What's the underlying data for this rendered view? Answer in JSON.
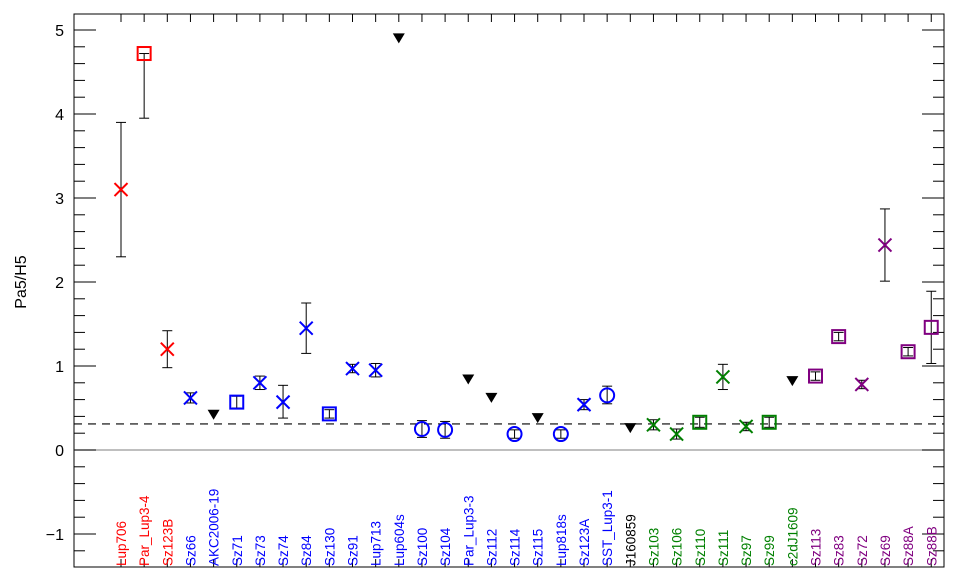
{
  "chart_data": {
    "type": "scatter",
    "title": "",
    "xlabel": "",
    "ylabel": "Pa5/H5",
    "ylim": [
      -1.4,
      5.2
    ],
    "yticks": [
      -1,
      0,
      1,
      2,
      3,
      4,
      5
    ],
    "reference_lines": [
      {
        "y": 0.31,
        "style": "dashed",
        "color": "#000000"
      },
      {
        "y": 0.0,
        "style": "solid",
        "color": "#999999"
      }
    ],
    "colors": {
      "red": "#ff0000",
      "blue": "#0000ff",
      "green": "#008000",
      "purple": "#800080",
      "black": "#000000"
    },
    "categories": [
      {
        "label": "Lup706",
        "color": "red",
        "marker": "x",
        "y": 3.1,
        "err": [
          2.3,
          3.9
        ]
      },
      {
        "label": "Par_Lup3-4",
        "color": "red",
        "marker": "square",
        "y": 4.72,
        "err": [
          3.95,
          4.72
        ]
      },
      {
        "label": "Sz123B",
        "color": "red",
        "marker": "x",
        "y": 1.2,
        "err": [
          0.98,
          1.42
        ]
      },
      {
        "label": "Sz66",
        "color": "blue",
        "marker": "x",
        "y": 0.62,
        "err": [
          0.56,
          0.68
        ]
      },
      {
        "label": "AKC2006-19",
        "color": "blue",
        "marker": "triangle-down",
        "y": 0.42
      },
      {
        "label": "Sz71",
        "color": "blue",
        "marker": "square",
        "y": 0.57,
        "err": [
          0.5,
          0.64
        ]
      },
      {
        "label": "Sz73",
        "color": "blue",
        "marker": "x",
        "y": 0.8,
        "err": [
          0.72,
          0.88
        ]
      },
      {
        "label": "Sz74",
        "color": "blue",
        "marker": "x",
        "y": 0.57,
        "err": [
          0.38,
          0.77
        ]
      },
      {
        "label": "Sz84",
        "color": "blue",
        "marker": "x",
        "y": 1.45,
        "err": [
          1.15,
          1.75
        ]
      },
      {
        "label": "Sz130",
        "color": "blue",
        "marker": "square",
        "y": 0.43,
        "err": [
          0.38,
          0.48
        ]
      },
      {
        "label": "Sz91",
        "color": "blue",
        "marker": "x",
        "y": 0.97,
        "err": [
          0.92,
          1.02
        ]
      },
      {
        "label": "Lup713",
        "color": "blue",
        "marker": "x",
        "y": 0.95,
        "err": [
          0.87,
          1.03
        ]
      },
      {
        "label": "Lup604s",
        "color": "blue",
        "marker": "triangle-down",
        "y": 4.9
      },
      {
        "label": "Sz100",
        "color": "blue",
        "marker": "circle",
        "y": 0.25,
        "err": [
          0.15,
          0.35
        ]
      },
      {
        "label": "Sz104",
        "color": "blue",
        "marker": "circle",
        "y": 0.24,
        "err": [
          0.14,
          0.34
        ]
      },
      {
        "label": "Par_Lup3-3",
        "color": "blue",
        "marker": "triangle-down",
        "y": 0.84
      },
      {
        "label": "Sz112",
        "color": "blue",
        "marker": "triangle-down",
        "y": 0.62
      },
      {
        "label": "Sz114",
        "color": "blue",
        "marker": "circle",
        "y": 0.19,
        "err": [
          0.14,
          0.24
        ]
      },
      {
        "label": "Sz115",
        "color": "blue",
        "marker": "triangle-down",
        "y": 0.38
      },
      {
        "label": "Lup818s",
        "color": "blue",
        "marker": "circle",
        "y": 0.19,
        "err": [
          0.14,
          0.24
        ]
      },
      {
        "label": "Sz123A",
        "color": "blue",
        "marker": "x",
        "y": 0.54,
        "err": [
          0.48,
          0.6
        ]
      },
      {
        "label": "SST_Lup3-1",
        "color": "blue",
        "marker": "circle",
        "y": 0.65,
        "err": [
          0.55,
          0.76
        ]
      },
      {
        "label": "J160859",
        "color": "black",
        "marker": "triangle-down",
        "y": 0.26
      },
      {
        "label": "Sz103",
        "color": "green",
        "marker": "x",
        "y": 0.3,
        "err": [
          0.24,
          0.36
        ]
      },
      {
        "label": "Sz106",
        "color": "green",
        "marker": "x",
        "y": 0.19,
        "err": [
          0.13,
          0.25
        ]
      },
      {
        "label": "Sz110",
        "color": "green",
        "marker": "square",
        "y": 0.33,
        "err": [
          0.27,
          0.39
        ]
      },
      {
        "label": "Sz111",
        "color": "green",
        "marker": "x",
        "y": 0.87,
        "err": [
          0.72,
          1.02
        ]
      },
      {
        "label": "Sz97",
        "color": "green",
        "marker": "x",
        "y": 0.28,
        "err": [
          0.23,
          0.33
        ]
      },
      {
        "label": "Sz99",
        "color": "green",
        "marker": "square",
        "y": 0.33,
        "err": [
          0.27,
          0.39
        ]
      },
      {
        "label": "c2dJ1609",
        "color": "green",
        "marker": "triangle-down",
        "y": 0.82
      },
      {
        "label": "Sz113",
        "color": "purple",
        "marker": "square",
        "y": 0.88,
        "err": [
          0.83,
          0.93
        ]
      },
      {
        "label": "Sz83",
        "color": "purple",
        "marker": "square",
        "y": 1.35,
        "err": [
          1.3,
          1.4
        ]
      },
      {
        "label": "Sz72",
        "color": "purple",
        "marker": "x",
        "y": 0.78,
        "err": [
          0.73,
          0.83
        ]
      },
      {
        "label": "Sz69",
        "color": "purple",
        "marker": "x",
        "y": 2.44,
        "err": [
          2.01,
          2.87
        ]
      },
      {
        "label": "Sz88A",
        "color": "purple",
        "marker": "square",
        "y": 1.17,
        "err": [
          1.12,
          1.22
        ]
      },
      {
        "label": "Sz88B",
        "color": "purple",
        "marker": "square",
        "y": 1.46,
        "err": [
          1.03,
          1.89
        ]
      }
    ]
  }
}
